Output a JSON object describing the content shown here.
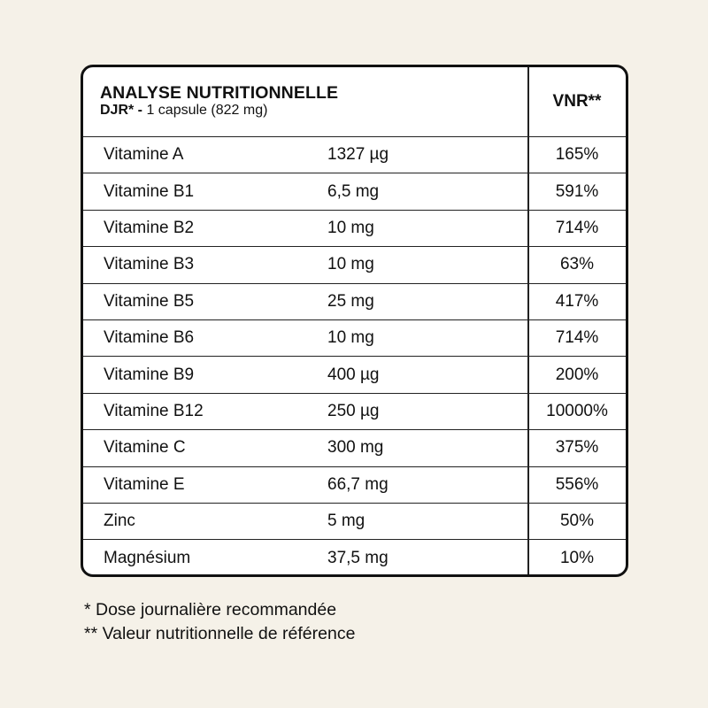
{
  "header": {
    "title": "ANALYSE NUTRITIONNELLE",
    "sub_bold": "DJR* -",
    "sub_text": " 1 capsule (822 mg)",
    "vnr_label": "VNR**"
  },
  "rows": [
    {
      "name": "Vitamine A",
      "amount": "1327 µg",
      "vnr": "165%"
    },
    {
      "name": "Vitamine B1",
      "amount": "6,5 mg",
      "vnr": "591%"
    },
    {
      "name": "Vitamine B2",
      "amount": "10 mg",
      "vnr": "714%"
    },
    {
      "name": "Vitamine B3",
      "amount": "10 mg",
      "vnr": "63%"
    },
    {
      "name": "Vitamine B5",
      "amount": "25 mg",
      "vnr": "417%"
    },
    {
      "name": "Vitamine B6",
      "amount": "10 mg",
      "vnr": "714%"
    },
    {
      "name": "Vitamine B9",
      "amount": "400 µg",
      "vnr": "200%"
    },
    {
      "name": "Vitamine B12",
      "amount": "250 µg",
      "vnr": "10000%"
    },
    {
      "name": "Vitamine C",
      "amount": "300 mg",
      "vnr": "375%"
    },
    {
      "name": "Vitamine E",
      "amount": "66,7 mg",
      "vnr": "556%"
    },
    {
      "name": "Zinc",
      "amount": "5 mg",
      "vnr": "50%"
    },
    {
      "name": "Magnésium",
      "amount": "37,5 mg",
      "vnr": "10%"
    }
  ],
  "footnotes": [
    "* Dose journalière recommandée",
    "** Valeur nutritionnelle de référence"
  ],
  "colors": {
    "background": "#f5f1e8",
    "table_bg": "#ffffff",
    "border": "#111111"
  }
}
